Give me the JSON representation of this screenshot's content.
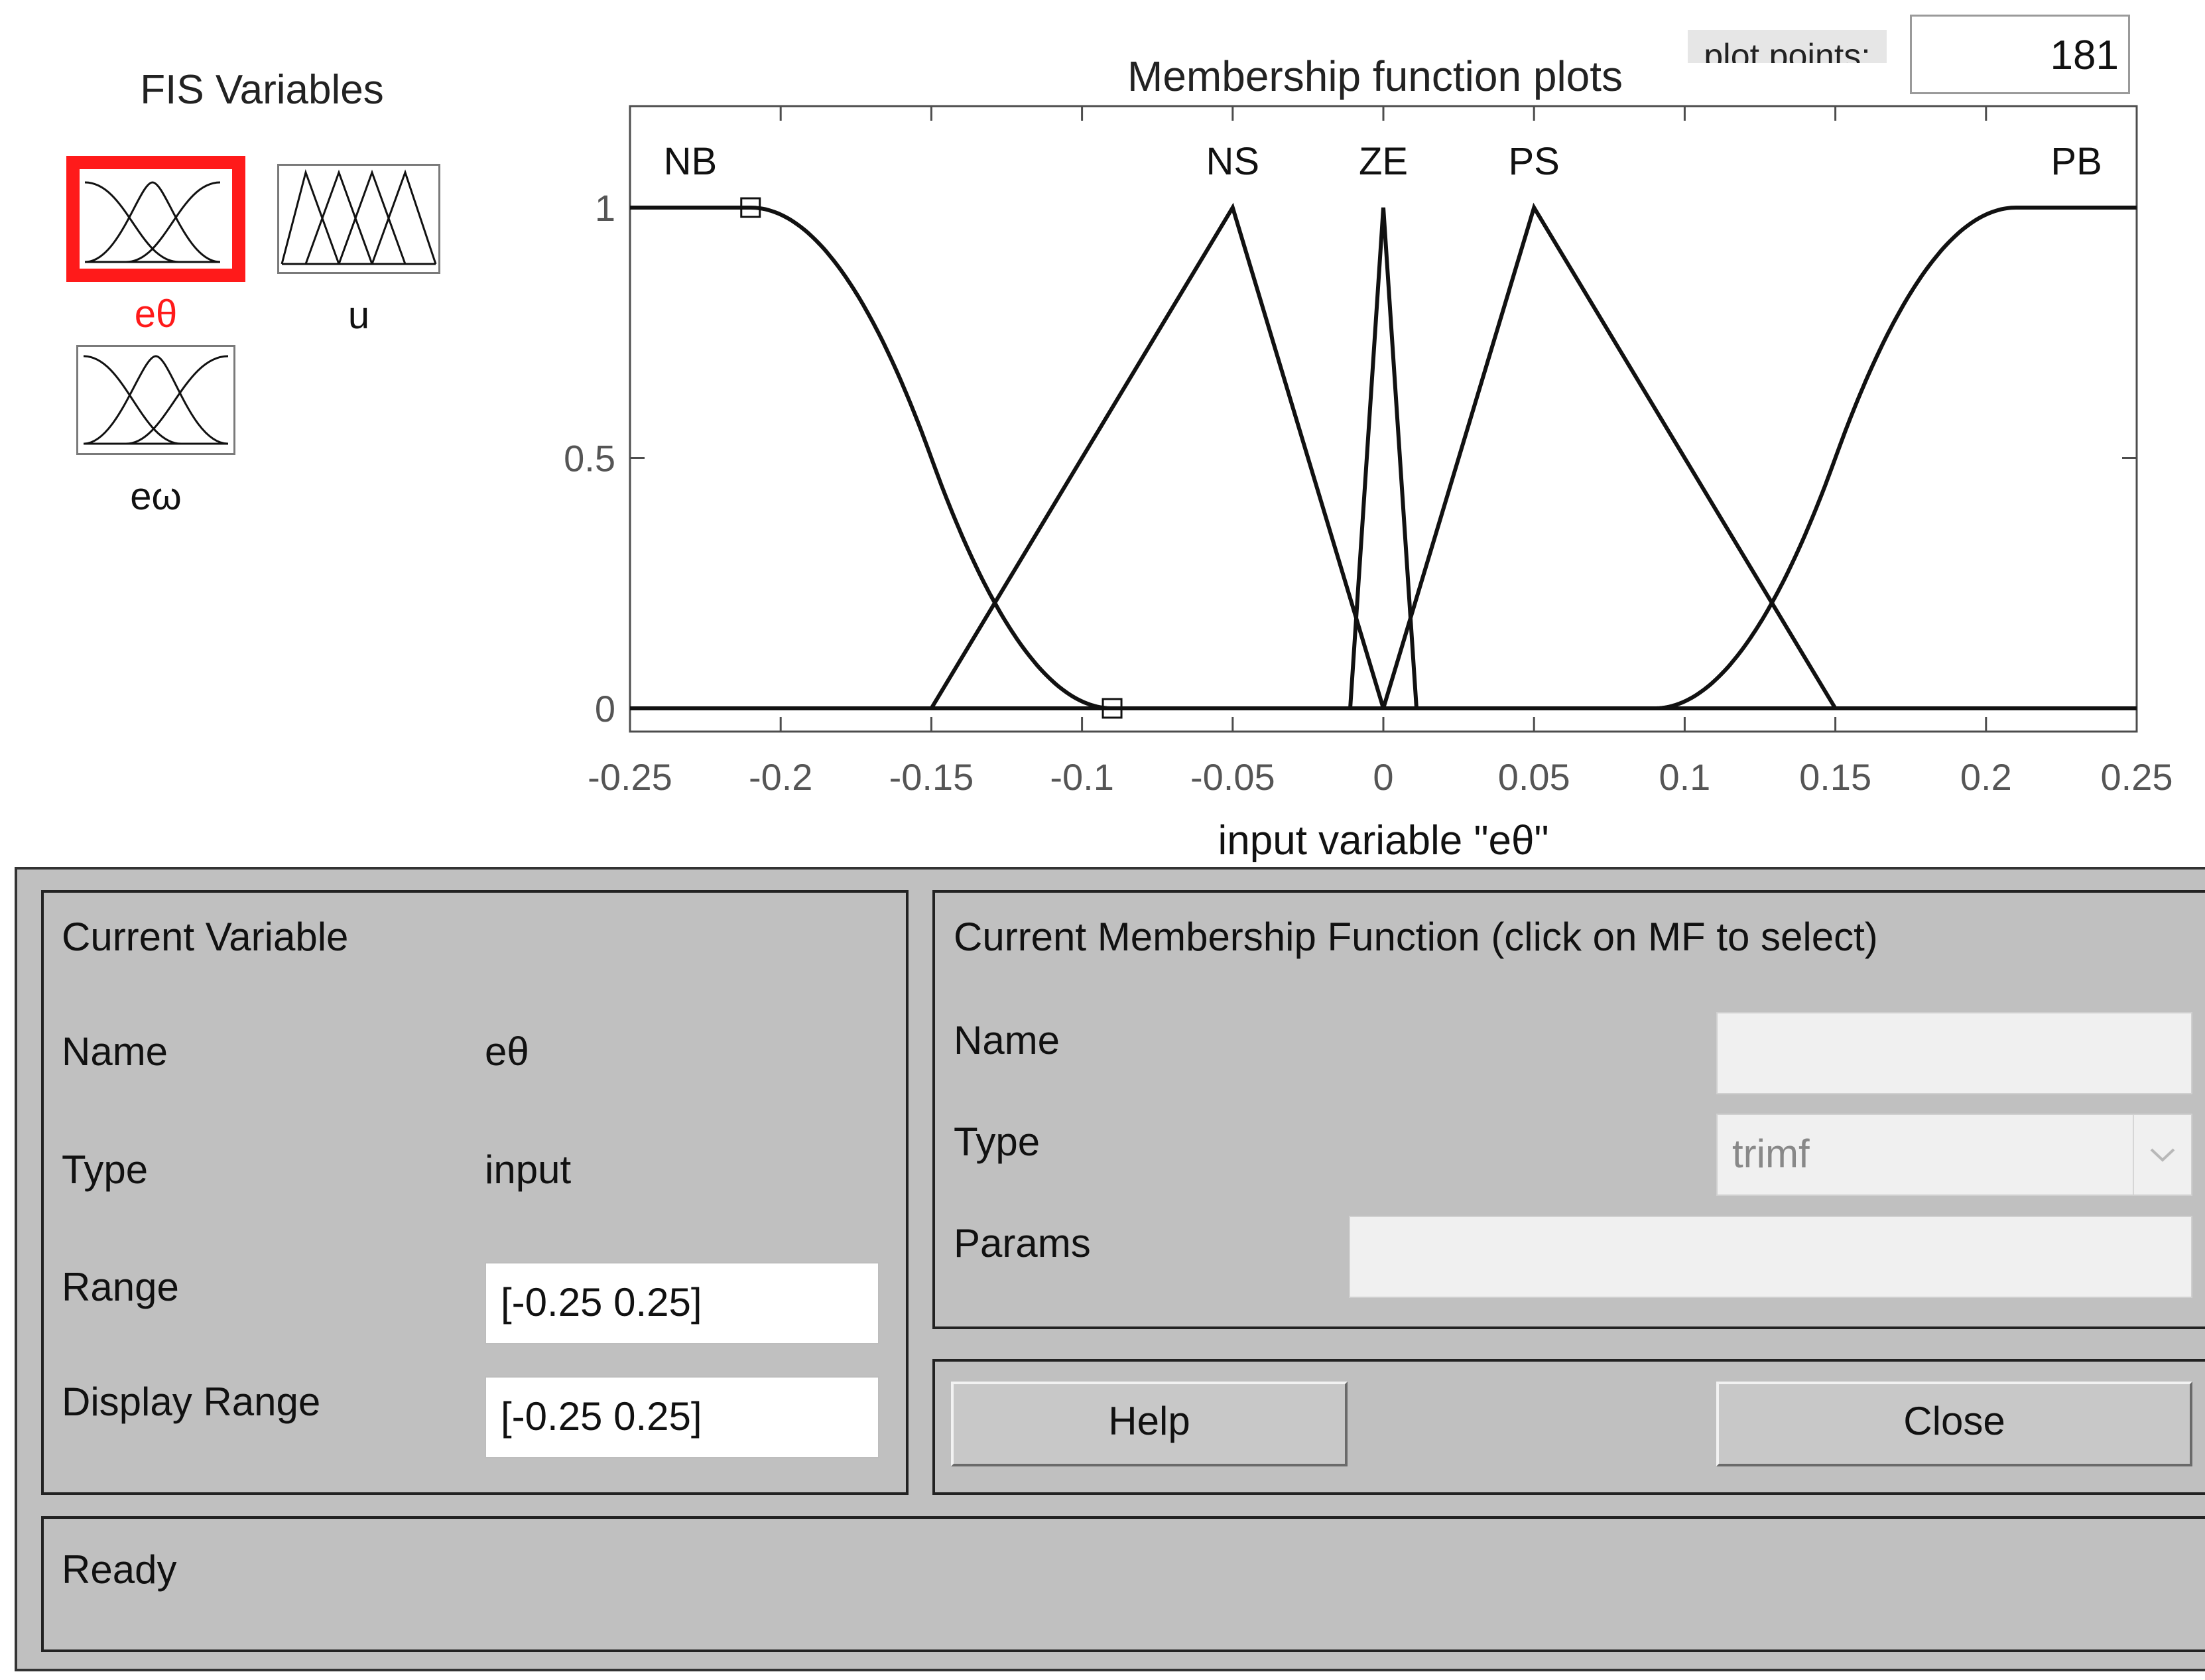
{
  "fis": {
    "title": "FIS Variables",
    "variables": [
      {
        "label": "eθ",
        "selected": true,
        "color": "#ff1a1a"
      },
      {
        "label": "u",
        "selected": false
      },
      {
        "label": "eω",
        "selected": false
      }
    ]
  },
  "plot_points": {
    "label": "plot points:",
    "value": "181"
  },
  "chart_data": {
    "type": "line",
    "title": "Membership function plots",
    "xlabel": "input variable \"eθ\"",
    "ylabel": "",
    "xlim": [
      -0.25,
      0.25
    ],
    "ylim": [
      0,
      1
    ],
    "xticks": [
      "-0.25",
      "-0.2",
      "-0.15",
      "-0.1",
      "-0.05",
      "0",
      "0.05",
      "0.1",
      "0.15",
      "0.2",
      "0.25"
    ],
    "yticks": [
      "0",
      "0.5",
      "1"
    ],
    "series": [
      {
        "name": "NB",
        "mf": "zmf",
        "params": [
          -0.21,
          -0.09
        ]
      },
      {
        "name": "NS",
        "mf": "trimf",
        "params": [
          -0.15,
          -0.05,
          0
        ]
      },
      {
        "name": "ZE",
        "mf": "trimf",
        "params": [
          -0.011,
          0,
          0.011
        ]
      },
      {
        "name": "PS",
        "mf": "trimf",
        "params": [
          0,
          0.05,
          0.15
        ]
      },
      {
        "name": "PB",
        "mf": "smf",
        "params": [
          0.09,
          0.21
        ]
      }
    ]
  },
  "current_variable": {
    "title": "Current Variable",
    "name_label": "Name",
    "name_value": "eθ",
    "type_label": "Type",
    "type_value": "input",
    "range_label": "Range",
    "range_value": "[-0.25 0.25]",
    "display_range_label": "Display Range",
    "display_range_value": "[-0.25 0.25]"
  },
  "current_mf": {
    "title": "Current Membership Function (click on MF to select)",
    "name_label": "Name",
    "name_value": "",
    "type_label": "Type",
    "type_value": "trimf",
    "params_label": "Params",
    "params_value": ""
  },
  "buttons": {
    "help": "Help",
    "close": "Close"
  },
  "status": "Ready"
}
